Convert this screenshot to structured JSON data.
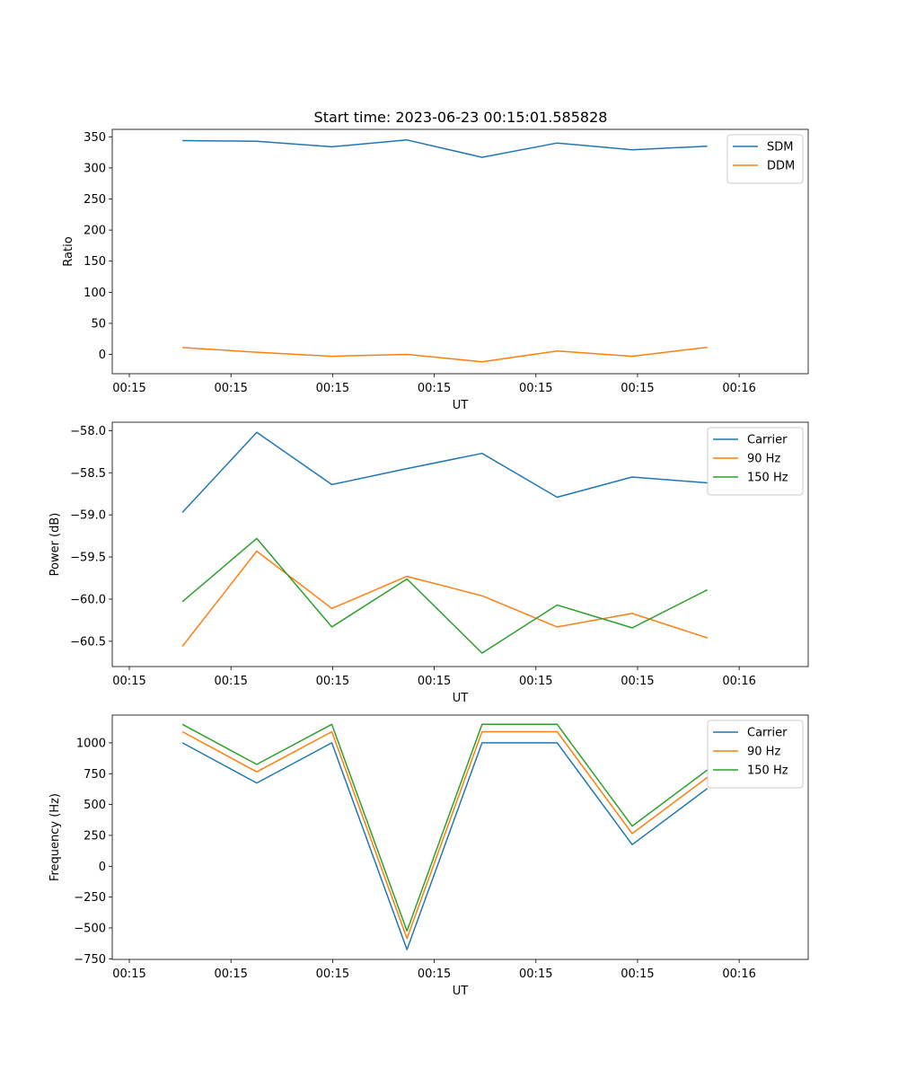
{
  "figure_title": "Start time: 2023-06-23 00:15:01.585828",
  "chart_data": [
    {
      "type": "line",
      "title": "Start time: 2023-06-23 00:15:01.585828",
      "xlabel": "UT",
      "ylabel": "Ratio",
      "x_tick_labels": [
        "00:15",
        "00:15",
        "00:15",
        "00:15",
        "00:15",
        "00:15",
        "00:16"
      ],
      "y_ticks": [
        0,
        50,
        100,
        150,
        200,
        250,
        300,
        350
      ],
      "y_tick_labels": [
        "0",
        "50",
        "100",
        "150",
        "200",
        "250",
        "300",
        "350"
      ],
      "ylim": [
        -31,
        362
      ],
      "xlim": [
        -0.225,
        8.95
      ],
      "legend_position": "top-right",
      "x": [
        0.7,
        1.68,
        2.67,
        3.66,
        4.65,
        5.64,
        6.63,
        7.62
      ],
      "series": [
        {
          "name": "SDM",
          "color": "#1f77b4",
          "values": [
            344,
            343,
            334,
            345,
            317,
            340,
            329,
            335
          ]
        },
        {
          "name": "DDM",
          "color": "#ff7f0e",
          "values": [
            11,
            3.5,
            -3,
            0,
            -12,
            5.5,
            -3,
            11.5
          ]
        }
      ]
    },
    {
      "type": "line",
      "title": "",
      "xlabel": "UT",
      "ylabel": "Power (dB)",
      "x_tick_labels": [
        "00:15",
        "00:15",
        "00:15",
        "00:15",
        "00:15",
        "00:15",
        "00:16"
      ],
      "y_ticks": [
        -60.5,
        -60.0,
        -59.5,
        -59.0,
        -58.5,
        -58.0
      ],
      "y_tick_labels": [
        "−60.5",
        "−60.0",
        "−59.5",
        "−59.0",
        "−58.5",
        "−58.0"
      ],
      "ylim": [
        -60.8,
        -57.9
      ],
      "xlim": [
        -0.225,
        8.95
      ],
      "legend_position": "top-right",
      "x": [
        0.7,
        1.68,
        2.67,
        3.66,
        4.65,
        5.64,
        6.63,
        7.62
      ],
      "series": [
        {
          "name": "Carrier",
          "color": "#1f77b4",
          "values": [
            -58.97,
            -58.02,
            -58.64,
            -58.45,
            -58.27,
            -58.79,
            -58.55,
            -58.62
          ]
        },
        {
          "name": "90 Hz",
          "color": "#ff7f0e",
          "values": [
            -60.56,
            -59.43,
            -60.11,
            -59.73,
            -59.96,
            -60.33,
            -60.17,
            -60.46
          ]
        },
        {
          "name": "150 Hz",
          "color": "#2ca02c",
          "values": [
            -60.03,
            -59.28,
            -60.33,
            -59.76,
            -60.64,
            -60.07,
            -60.34,
            -59.89
          ]
        }
      ]
    },
    {
      "type": "line",
      "title": "",
      "xlabel": "UT",
      "ylabel": "Frequency (Hz)",
      "x_tick_labels": [
        "00:15",
        "00:15",
        "00:15",
        "00:15",
        "00:15",
        "00:15",
        "00:16"
      ],
      "y_ticks": [
        -750,
        -500,
        -250,
        0,
        250,
        500,
        750,
        1000
      ],
      "y_tick_labels": [
        "−750",
        "−500",
        "−250",
        "0",
        "250",
        "500",
        "750",
        "1000"
      ],
      "ylim": [
        -755,
        1225
      ],
      "xlim": [
        -0.225,
        8.95
      ],
      "legend_position": "top-right",
      "x": [
        0.7,
        1.68,
        2.67,
        3.66,
        4.65,
        5.64,
        6.63,
        7.62
      ],
      "series": [
        {
          "name": "Carrier",
          "color": "#1f77b4",
          "values": [
            1000,
            675,
            1000,
            -675,
            1000,
            1000,
            175,
            630
          ]
        },
        {
          "name": "90 Hz",
          "color": "#ff7f0e",
          "values": [
            1090,
            765,
            1090,
            -585,
            1090,
            1090,
            265,
            720
          ]
        },
        {
          "name": "150 Hz",
          "color": "#2ca02c",
          "values": [
            1150,
            825,
            1150,
            -525,
            1150,
            1150,
            325,
            780
          ]
        }
      ]
    }
  ]
}
